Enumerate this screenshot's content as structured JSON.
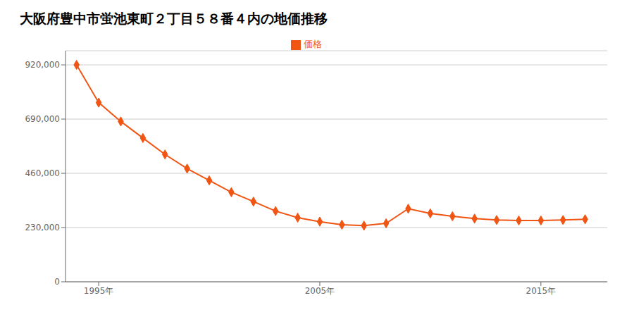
{
  "chart_data": {
    "type": "line",
    "title": "大阪府豊中市蛍池東町２丁目５８番４内の地価推移",
    "x": [
      1994,
      1995,
      1996,
      1997,
      1998,
      1999,
      2000,
      2001,
      2002,
      2003,
      2004,
      2005,
      2006,
      2007,
      2008,
      2009,
      2010,
      2011,
      2012,
      2013,
      2014,
      2015,
      2016,
      2017
    ],
    "series": [
      {
        "name": "価格",
        "color": "#f05514",
        "marker": "diamond",
        "line_style": "solid",
        "values": [
          920000,
          760000,
          680000,
          610000,
          540000,
          480000,
          430000,
          380000,
          340000,
          300000,
          272000,
          255000,
          242000,
          238000,
          248000,
          310000,
          290000,
          278000,
          268000,
          262000,
          260000,
          260000,
          262000,
          265000
        ]
      }
    ],
    "xlim": [
      1993.5,
      2018
    ],
    "xticks": [
      {
        "value": 1995,
        "label": "1995年"
      },
      {
        "value": 2005,
        "label": "2005年"
      },
      {
        "value": 2015,
        "label": "2015年"
      }
    ],
    "ylim": [
      0,
      980000
    ],
    "yticks": [
      0,
      {
        "value": 230000,
        "label": "230,000"
      },
      {
        "value": 460000,
        "label": "460,000"
      },
      {
        "value": 690000,
        "label": "690,000"
      },
      {
        "value": 920000,
        "label": "920,000"
      }
    ],
    "grid": "y",
    "legend": "top"
  }
}
